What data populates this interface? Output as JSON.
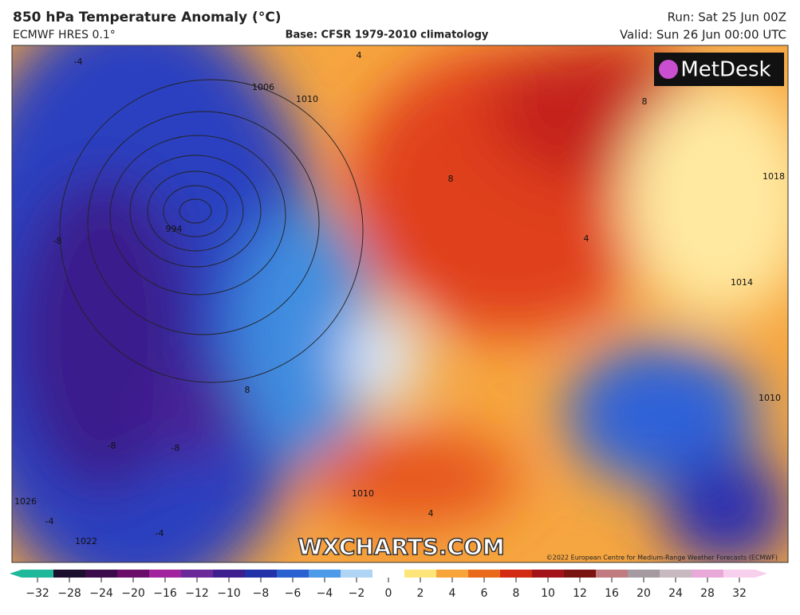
{
  "header": {
    "title": "850 hPa Temperature Anomaly (°C)",
    "model": "ECMWF HRES 0.1°",
    "base": "Base: CFSR 1979-2010 climatology",
    "run": "Run: Sat 25 Jun 00Z",
    "valid": "Valid: Sun 26 Jun 00:00 UTC"
  },
  "map": {
    "logo": "MetDesk",
    "watermark": "WXCHARTS.COM",
    "copyright": "©2022 European Centre for Medium-Range Weather Forecasts (ECMWF)",
    "labels": [
      "994",
      "1006",
      "1010",
      "1018",
      "1014",
      "1010",
      "1026",
      "1022",
      "1010",
      "8",
      "8",
      "8",
      "4",
      "4",
      "4",
      "-8",
      "-8",
      "-8",
      "-4",
      "-4",
      "-4"
    ]
  },
  "colorbar": {
    "ticks": [
      {
        "value": -32,
        "label": "−32"
      },
      {
        "value": -28,
        "label": "−28"
      },
      {
        "value": -24,
        "label": "−24"
      },
      {
        "value": -20,
        "label": "−20"
      },
      {
        "value": -16,
        "label": "−16"
      },
      {
        "value": -12,
        "label": "−12"
      },
      {
        "value": -10,
        "label": "−10"
      },
      {
        "value": -8,
        "label": "−8"
      },
      {
        "value": -6,
        "label": "−6"
      },
      {
        "value": -4,
        "label": "−4"
      },
      {
        "value": -2,
        "label": "−2"
      },
      0,
      2,
      4,
      6,
      8,
      10,
      12,
      16,
      20,
      24,
      28,
      32
    ]
  }
}
